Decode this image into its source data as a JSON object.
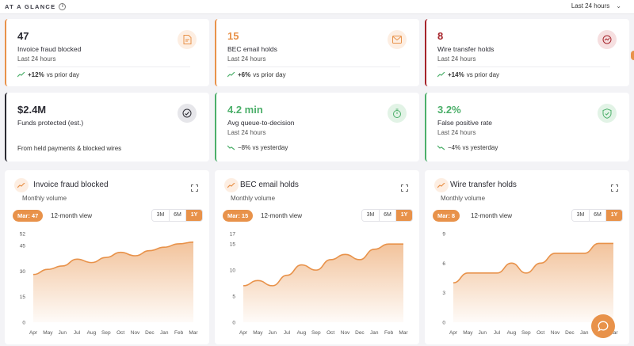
{
  "header": {
    "title": "AT A GLANCE",
    "info_icon": "info-icon",
    "range_label": "Last 24 hours"
  },
  "kpis": [
    {
      "value": "47",
      "label": "Invoice fraud blocked",
      "sub": "Last 24 hours",
      "trend_strong": "+12%",
      "trend_rest": " vs prior day",
      "icon": "invoice-icon",
      "accent": "#e8924a"
    },
    {
      "value": "15",
      "label": "BEC email holds",
      "sub": "Last 24 hours",
      "trend_strong": "+6%",
      "trend_rest": " vs prior day",
      "icon": "mail-icon",
      "accent": "#e8924a"
    },
    {
      "value": "8",
      "label": "Wire transfer holds",
      "sub": "Last 24 hours",
      "trend_strong": "+14%",
      "trend_rest": " vs prior day",
      "icon": "wire-icon",
      "accent": "#a6242b"
    },
    {
      "value": "$2.4M",
      "label": "Funds protected (est.)",
      "sub": "",
      "trend_strong": "",
      "trend_rest": "From held payments & blocked wires",
      "icon": "gauge-icon",
      "accent": "#2b2b33"
    },
    {
      "value": "4.2 min",
      "label": "Avg queue-to-decision",
      "sub": "Last 24 hours",
      "trend_strong": "",
      "trend_rest": "−8% vs yesterday",
      "icon": "timer-icon",
      "accent": "#4caf6a"
    },
    {
      "value": "3.2%",
      "label": "False positive rate",
      "sub": "Last 24 hours",
      "trend_strong": "",
      "trend_rest": "−4% vs yesterday",
      "icon": "shield-check-icon",
      "accent": "#4caf6a"
    }
  ],
  "colors": {
    "orange": "#e8924a",
    "red": "#a6242b",
    "green": "#4caf6a",
    "dark": "#2b2b33"
  },
  "chart_cards": [
    {
      "title": "Invoice fraud blocked",
      "subtitle": "Monthly volume",
      "pill": "Mar: 47",
      "view": "12-month view",
      "ranges": [
        "3M",
        "6M",
        "1Y"
      ],
      "active_range": "1Y"
    },
    {
      "title": "BEC email holds",
      "subtitle": "Monthly volume",
      "pill": "Mar: 15",
      "view": "12-month view",
      "ranges": [
        "3M",
        "6M",
        "1Y"
      ],
      "active_range": "1Y"
    },
    {
      "title": "Wire transfer holds",
      "subtitle": "Monthly volume",
      "pill": "Mar: 8",
      "view": "12-month view",
      "ranges": [
        "3M",
        "6M",
        "1Y"
      ],
      "active_range": "1Y"
    }
  ],
  "chart_data": [
    {
      "type": "area",
      "x": [
        "Apr",
        "May",
        "Jun",
        "Jul",
        "Aug",
        "Sep",
        "Oct",
        "Nov",
        "Dec",
        "Jan",
        "Feb",
        "Mar"
      ],
      "series": [
        {
          "values": [
            28,
            31,
            33,
            37,
            35,
            38,
            41,
            39,
            42,
            44,
            46,
            47
          ]
        }
      ],
      "yticks": [
        0,
        15,
        30,
        45,
        52
      ],
      "ylim": [
        0,
        52
      ],
      "grid": false
    },
    {
      "type": "area",
      "x": [
        "Apr",
        "May",
        "Jun",
        "Jul",
        "Aug",
        "Sep",
        "Oct",
        "Nov",
        "Dec",
        "Jan",
        "Feb",
        "Mar"
      ],
      "series": [
        {
          "values": [
            7,
            8,
            7,
            9,
            11,
            10,
            12,
            13,
            12,
            14,
            15,
            15
          ]
        }
      ],
      "yticks": [
        0,
        5,
        10,
        15,
        17
      ],
      "ylim": [
        0,
        17
      ],
      "grid": false
    },
    {
      "type": "area",
      "x": [
        "Apr",
        "May",
        "Jun",
        "Jul",
        "Aug",
        "Sep",
        "Oct",
        "Nov",
        "Dec",
        "Jan",
        "Feb",
        "Mar"
      ],
      "series": [
        {
          "values": [
            4,
            5,
            5,
            5,
            6,
            5,
            6,
            7,
            7,
            7,
            8,
            8
          ]
        }
      ],
      "yticks": [
        0,
        3,
        6,
        9
      ],
      "ylim": [
        0,
        9
      ],
      "grid": false
    }
  ],
  "fab": {
    "icon": "chat-icon"
  }
}
